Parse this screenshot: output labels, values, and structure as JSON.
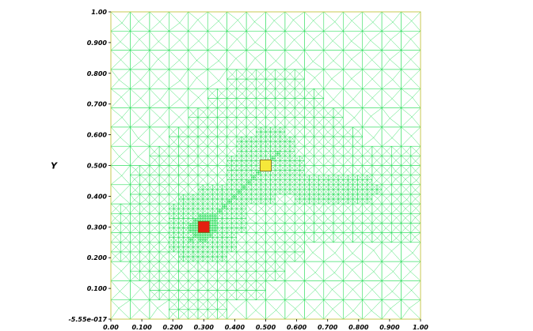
{
  "plot": {
    "ylabel": "Y",
    "xlabel": "",
    "x_ticks": [
      "0.00",
      "0.100",
      "0.200",
      "0.300",
      "0.400",
      "0.500",
      "0.600",
      "0.700",
      "0.800",
      "0.900",
      "1.00"
    ],
    "y_ticks": [
      "-5.55e-017",
      "0.100",
      "0.200",
      "0.300",
      "0.400",
      "0.500",
      "0.600",
      "0.700",
      "0.800",
      "0.900",
      "1.00"
    ],
    "mesh_color": "#22dd55",
    "frame_color": "#c8c850",
    "markers": [
      {
        "name": "red-marker",
        "x": 0.3,
        "y": 0.3,
        "color": "#e32010"
      },
      {
        "name": "yellow-marker",
        "x": 0.5,
        "y": 0.5,
        "color": "#f5e83a"
      }
    ]
  },
  "chart_data": {
    "type": "scatter",
    "title": "",
    "xlabel": "",
    "ylabel": "Y",
    "xlim": [
      0,
      1
    ],
    "ylim": [
      0,
      1
    ],
    "grid": false,
    "series": [
      {
        "points": [
          [
            0.3,
            0.3
          ]
        ],
        "color": "#e32010"
      },
      {
        "points": [
          [
            0.5,
            0.5
          ]
        ],
        "color": "#f5e83a"
      }
    ]
  }
}
